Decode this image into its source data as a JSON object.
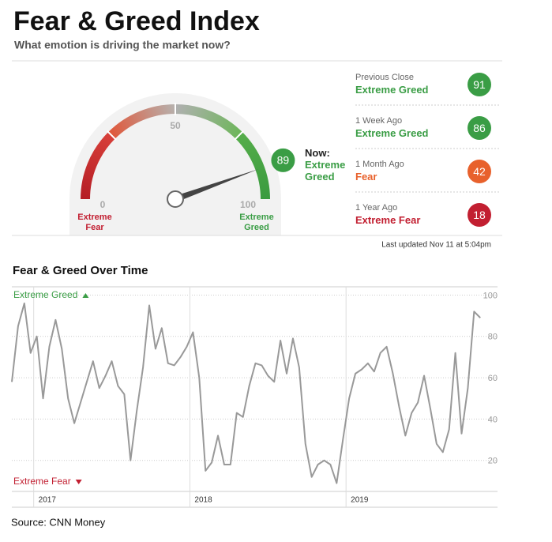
{
  "header": {
    "title": "Fear & Greed Index",
    "subtitle": "What emotion is driving the market now?"
  },
  "gauge": {
    "now_label": "Now:",
    "value": 89,
    "rating": "Extreme Greed",
    "color": "#3a9d45",
    "ticks": [
      0,
      50,
      100
    ],
    "min_label": "Extreme Fear",
    "max_label": "Extreme Greed"
  },
  "history": [
    {
      "label": "Previous Close",
      "rating": "Extreme Greed",
      "value": 91,
      "color": "#3a9d45"
    },
    {
      "label": "1 Week Ago",
      "rating": "Extreme Greed",
      "value": 86,
      "color": "#3a9d45"
    },
    {
      "label": "1 Month Ago",
      "rating": "Fear",
      "value": 42,
      "color": "#e8612c"
    },
    {
      "label": "1 Year Ago",
      "rating": "Extreme Fear",
      "value": 18,
      "color": "#c21f31"
    }
  ],
  "last_updated": "Last updated Nov 11 at 5:04pm",
  "chart_data": {
    "type": "line",
    "title": "Fear & Greed Over Time",
    "annotations": [
      {
        "text": "Extreme Greed",
        "color": "#3a9d45"
      },
      {
        "text": "Extreme Fear",
        "color": "#c21f31"
      }
    ],
    "x": [
      2016.86,
      2016.9,
      2016.94,
      2016.98,
      2017.02,
      2017.06,
      2017.1,
      2017.14,
      2017.18,
      2017.22,
      2017.26,
      2017.3,
      2017.34,
      2017.38,
      2017.42,
      2017.46,
      2017.5,
      2017.54,
      2017.58,
      2017.62,
      2017.66,
      2017.7,
      2017.74,
      2017.78,
      2017.82,
      2017.86,
      2017.9,
      2017.94,
      2017.98,
      2018.02,
      2018.06,
      2018.1,
      2018.14,
      2018.18,
      2018.22,
      2018.26,
      2018.3,
      2018.34,
      2018.38,
      2018.42,
      2018.46,
      2018.5,
      2018.54,
      2018.58,
      2018.62,
      2018.66,
      2018.7,
      2018.74,
      2018.78,
      2018.82,
      2018.86,
      2018.9,
      2018.94,
      2018.98,
      2019.02,
      2019.06,
      2019.1,
      2019.14,
      2019.18,
      2019.22,
      2019.26,
      2019.3,
      2019.34,
      2019.38,
      2019.42,
      2019.46,
      2019.5,
      2019.54,
      2019.58,
      2019.62,
      2019.66,
      2019.7,
      2019.74,
      2019.78,
      2019.82,
      2019.86
    ],
    "values": [
      58,
      85,
      96,
      72,
      80,
      50,
      75,
      88,
      74,
      50,
      38,
      48,
      58,
      68,
      55,
      61,
      68,
      56,
      52,
      20,
      44,
      65,
      95,
      74,
      84,
      67,
      66,
      70,
      75,
      82,
      60,
      15,
      19,
      32,
      18,
      18,
      43,
      41,
      56,
      67,
      66,
      61,
      58,
      78,
      62,
      79,
      65,
      28,
      12,
      18,
      20,
      18,
      9,
      30,
      50,
      62,
      64,
      67,
      63,
      72,
      75,
      62,
      46,
      32,
      43,
      48,
      61,
      45,
      28,
      24,
      35,
      72,
      33,
      55,
      92,
      89
    ],
    "color": "#999999",
    "xlim": [
      2016.86,
      2019.97
    ],
    "xticks": [
      2017,
      2018,
      2019
    ],
    "ylim": [
      5,
      104
    ],
    "yticks": [
      20,
      40,
      60,
      80,
      100
    ],
    "grid": true
  },
  "source": "Source: CNN Money"
}
